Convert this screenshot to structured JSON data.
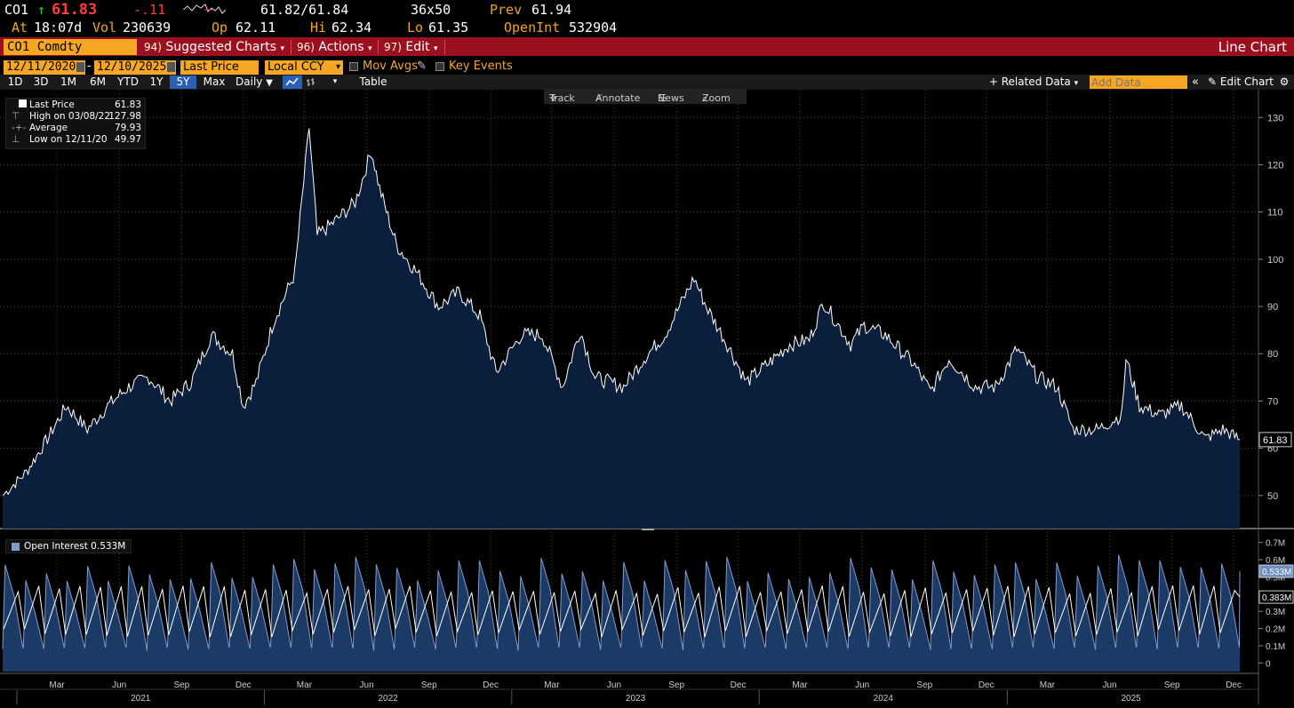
{
  "quote": {
    "ticker": "CO1",
    "arrow": "↑",
    "last": "61.83",
    "change": "-.11",
    "bid_ask": "61.82/61.84",
    "size": "36x50",
    "prev_label": "Prev",
    "prev": "61.94",
    "at_label": "At",
    "time": "18:07d",
    "vol_label": "Vol",
    "vol": "230639",
    "op_label": "Op",
    "op": "62.11",
    "hi_label": "Hi",
    "hi": "62.34",
    "lo_label": "Lo",
    "lo": "61.35",
    "oi_label": "OpenInt",
    "oi": "532904"
  },
  "menubar": {
    "security": "CO1 Comdty",
    "suggested_num": "94)",
    "suggested": "Suggested Charts",
    "actions_num": "96)",
    "actions": "Actions",
    "edit_num": "97)",
    "edit": "Edit",
    "title": "Line Chart"
  },
  "controls": {
    "start_date": "12/11/2020",
    "dash": "-",
    "end_date": "12/10/2025",
    "field": "Last Price",
    "currency": "Local CCY",
    "mov_avgs": "Mov Avgs",
    "key_events": "Key Events",
    "ranges": [
      "1D",
      "3D",
      "1M",
      "6M",
      "YTD",
      "1Y",
      "5Y",
      "Max"
    ],
    "active_range": "5Y",
    "frequency": "Daily",
    "table": "Table",
    "related_data": "Related Data",
    "add_data_placeholder": "Add Data",
    "edit_chart": "Edit Chart"
  },
  "toolbox": {
    "track": "Track",
    "annotate": "Annotate",
    "news": "News",
    "zoom": "Zoom"
  },
  "legend_top": {
    "last_label": "Last Price",
    "last": "61.83",
    "high_label": "High on 03/08/22",
    "high": "127.98",
    "avg_label": "Average",
    "avg": "79.93",
    "low_label": "Low on 12/11/20",
    "low": "49.97"
  },
  "legend_bottom": {
    "label": "Open Interest 0.533M"
  },
  "colors": {
    "accent": "#f5a623",
    "menubar": "#9b0f1e",
    "fill": "#0b1f3d",
    "oi_fill": "#1c3a66",
    "oi_line": "#7f9ccc"
  },
  "chart_data": [
    {
      "type": "area",
      "series": [
        {
          "name": "Last Price",
          "x": [
            "2020-12-11",
            "2021-01-15",
            "2021-02-15",
            "2021-03-15",
            "2021-04-15",
            "2021-05-15",
            "2021-06-15",
            "2021-07-15",
            "2021-08-15",
            "2021-09-15",
            "2021-10-15",
            "2021-11-15",
            "2021-12-01",
            "2021-12-20",
            "2022-01-15",
            "2022-02-15",
            "2022-03-08",
            "2022-03-20",
            "2022-04-15",
            "2022-05-15",
            "2022-06-08",
            "2022-06-20",
            "2022-07-15",
            "2022-08-15",
            "2022-09-15",
            "2022-10-15",
            "2022-11-15",
            "2022-12-09",
            "2023-01-15",
            "2023-02-15",
            "2023-03-17",
            "2023-04-12",
            "2023-05-04",
            "2023-06-15",
            "2023-07-15",
            "2023-08-15",
            "2023-09-27",
            "2023-10-15",
            "2023-11-15",
            "2023-12-13",
            "2024-01-15",
            "2024-02-15",
            "2024-03-15",
            "2024-04-05",
            "2024-05-15",
            "2024-06-04",
            "2024-07-05",
            "2024-08-15",
            "2024-09-10",
            "2024-10-07",
            "2024-11-15",
            "2024-12-15",
            "2025-01-15",
            "2025-02-15",
            "2025-03-15",
            "2025-04-08",
            "2025-05-15",
            "2025-06-19",
            "2025-06-25",
            "2025-07-15",
            "2025-08-15",
            "2025-09-15",
            "2025-10-20",
            "2025-11-15",
            "2025-12-10"
          ],
          "values": [
            50,
            55,
            62,
            69,
            64,
            69,
            73,
            75,
            70,
            74,
            84,
            80,
            69,
            74,
            87,
            97,
            127.98,
            105,
            108,
            112,
            123,
            115,
            103,
            97,
            90,
            93,
            88,
            76,
            84,
            84,
            73,
            85,
            75,
            73,
            79,
            84,
            96,
            90,
            82,
            74,
            78,
            82,
            83,
            91,
            82,
            86,
            84,
            78,
            72,
            79,
            73,
            73,
            81,
            75,
            73,
            64,
            64,
            67,
            79,
            69,
            67,
            69,
            62,
            64,
            61.83
          ]
        }
      ],
      "xlabel": "",
      "ylabel": "",
      "ylim": [
        43,
        134
      ],
      "yticks": [
        50,
        60,
        70,
        80,
        90,
        100,
        110,
        120,
        130
      ],
      "last_value_label": "61.83"
    },
    {
      "type": "area",
      "series": [
        {
          "name": "Open Interest",
          "pattern": "sawtooth",
          "low": 0.07,
          "high": 0.62,
          "last": 0.533,
          "last_label": "0.533M"
        },
        {
          "name": "",
          "pattern": "wave",
          "low": 0.15,
          "high": 0.45,
          "last": 0.383,
          "last_label": "0.383M"
        }
      ],
      "ylim": [
        -0.05,
        0.75
      ],
      "yticks": [
        0,
        0.1,
        0.2,
        0.3,
        0.4,
        0.5,
        0.6,
        0.7
      ],
      "ytick_labels": [
        "0",
        "0.1M",
        "0.2M",
        "0.3M",
        "0.4M",
        "0.5M",
        "0.6M",
        "0.7M"
      ],
      "months": [
        "Mar",
        "Jun",
        "Sep",
        "Dec",
        "Mar",
        "Jun",
        "Sep",
        "Dec",
        "Mar",
        "Jun",
        "Sep",
        "Dec",
        "Mar",
        "Jun",
        "Sep",
        "Dec",
        "Mar",
        "Jun",
        "Sep",
        "Dec"
      ],
      "years": [
        "2021",
        "2022",
        "2023",
        "2024",
        "2025"
      ]
    }
  ]
}
